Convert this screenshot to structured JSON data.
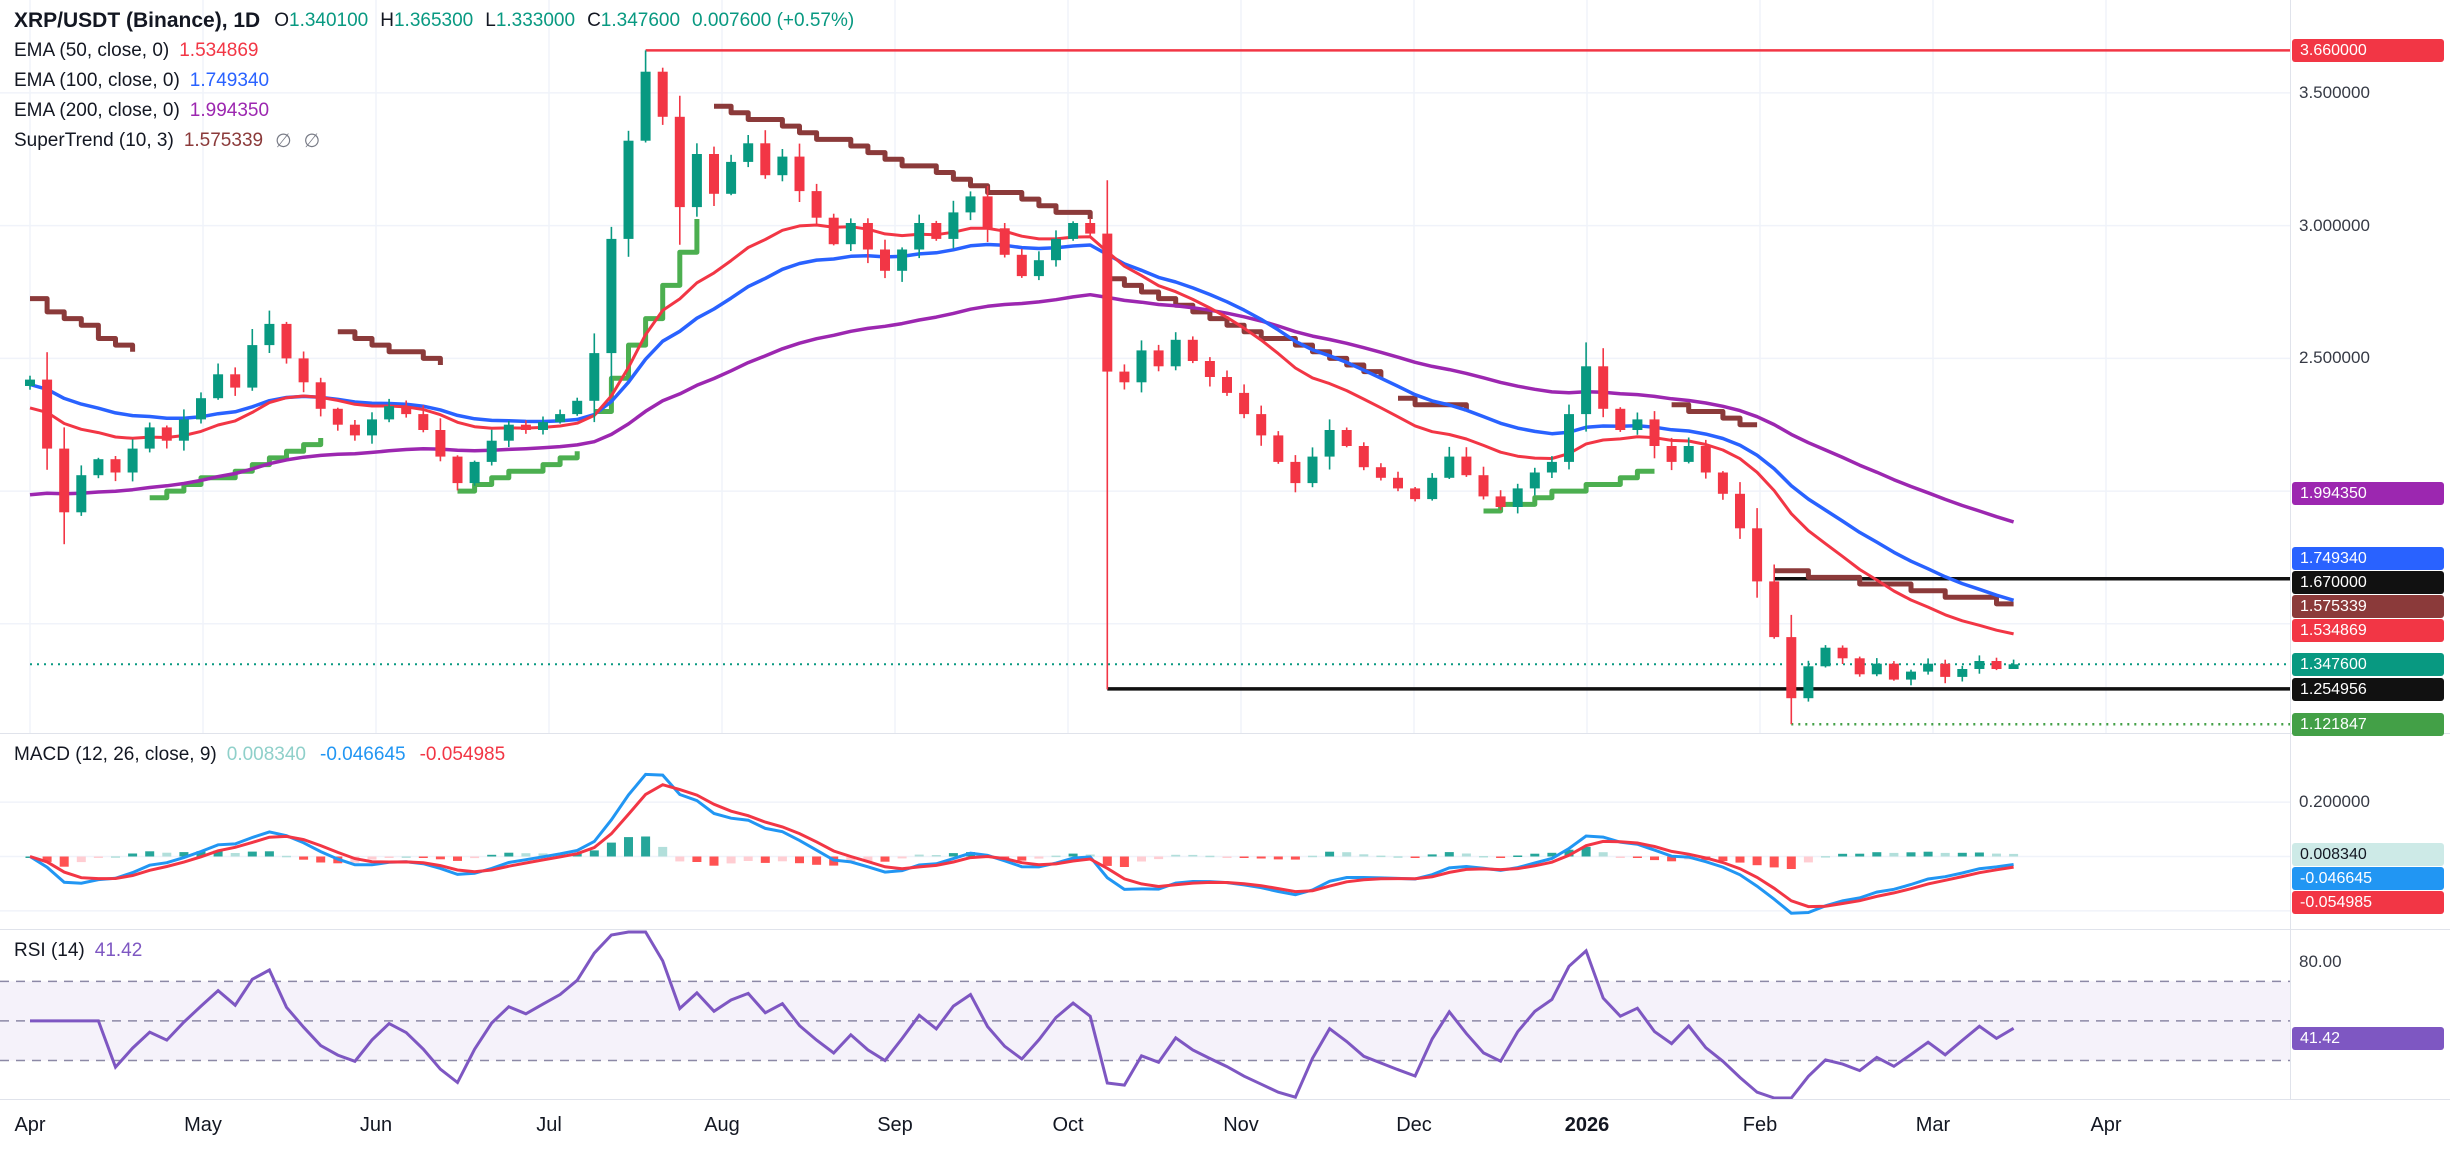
{
  "legend": {
    "symbol": "XRP/USDT (Binance), 1D",
    "ohlc": [
      {
        "k": "O",
        "v": "1.340100"
      },
      {
        "k": "H",
        "v": "1.365300"
      },
      {
        "k": "L",
        "v": "1.333000"
      },
      {
        "k": "C",
        "v": "1.347600"
      }
    ],
    "change": "0.007600 (+0.57%)",
    "up_color": "#089981",
    "indicators": {
      "ema50": {
        "label": "EMA (50, close, 0)",
        "value": "1.534869",
        "color": "#f23645"
      },
      "ema100": {
        "label": "EMA (100, close, 0)",
        "value": "1.749340",
        "color": "#2962ff"
      },
      "ema200": {
        "label": "EMA (200, close, 0)",
        "value": "1.994350",
        "color": "#9c27b0"
      },
      "supertrend": {
        "label": "SuperTrend (10, 3)",
        "value": "1.575339",
        "color": "#8b3a3a",
        "icon1": "∅",
        "icon2": "∅"
      },
      "macd": {
        "label": "MACD (12, 26, close, 9)",
        "hist_value": "0.008340",
        "hist_color": "#8fd0ca",
        "macd_value": "-0.046645",
        "macd_color": "#2196f3",
        "signal_value": "-0.054985",
        "signal_color": "#f23645"
      },
      "rsi": {
        "label": "RSI (14)",
        "value": "41.42",
        "color": "#7e57c2"
      }
    }
  },
  "price_axis": {
    "labels": [
      {
        "text": "3.500000",
        "value": 3.5
      },
      {
        "text": "3.000000",
        "value": 3.0
      },
      {
        "text": "2.500000",
        "value": 2.5
      }
    ],
    "badges": [
      {
        "text": "3.660000",
        "value": 3.66,
        "bg": "#f23645",
        "fg": "#ffffff"
      },
      {
        "text": "1.994350",
        "value": 1.99435,
        "bg": "#9c27b0",
        "fg": "#ffffff"
      },
      {
        "text": "1.749340",
        "value": 1.74934,
        "bg": "#2962ff",
        "fg": "#ffffff"
      },
      {
        "text": "1.670000",
        "value": 1.67,
        "bg": "#111111",
        "fg": "#ffffff"
      },
      {
        "text": "1.575339",
        "value": 1.575339,
        "bg": "#8b3a3a",
        "fg": "#ffffff"
      },
      {
        "text": "1.534869",
        "value": 1.534869,
        "bg": "#f23645",
        "fg": "#ffffff"
      },
      {
        "text": "1.347600",
        "value": 1.3476,
        "bg": "#089981",
        "fg": "#ffffff"
      },
      {
        "text": "1.254956",
        "value": 1.254956,
        "bg": "#111111",
        "fg": "#ffffff"
      },
      {
        "text": "1.121847",
        "value": 1.121847,
        "bg": "#43a047",
        "fg": "#ffffff"
      }
    ]
  },
  "macd_axis": {
    "labels": [
      {
        "text": "0.200000",
        "value": 0.2
      }
    ],
    "badges": [
      {
        "text": "0.008340",
        "value": 0.00834,
        "bg": "#cdeae7",
        "fg": "#131722"
      },
      {
        "text": "-0.046645",
        "value": -0.046645,
        "bg": "#2196f3",
        "fg": "#ffffff"
      },
      {
        "text": "-0.054985",
        "value": -0.054985,
        "bg": "#f23645",
        "fg": "#ffffff"
      }
    ]
  },
  "rsi_axis": {
    "labels": [
      {
        "text": "80.00",
        "value": 80
      }
    ],
    "badges": [
      {
        "text": "41.42",
        "value": 41.42,
        "bg": "#7e57c2",
        "fg": "#ffffff"
      }
    ]
  },
  "time_axis": {
    "months": [
      {
        "label": "Apr"
      },
      {
        "label": "May"
      },
      {
        "label": "Jun"
      },
      {
        "label": "Jul"
      },
      {
        "label": "Aug"
      },
      {
        "label": "Sep"
      },
      {
        "label": "Oct"
      },
      {
        "label": "Nov"
      },
      {
        "label": "Dec"
      },
      {
        "label": "2026",
        "bold": true
      },
      {
        "label": "Feb"
      },
      {
        "label": "Mar"
      },
      {
        "label": "Apr"
      }
    ]
  },
  "chart_data": [
    {
      "type": "candlestick",
      "title": "XRP/USDT (Binance), 1D",
      "timeframe": "1D",
      "last_ohlc": {
        "open": 1.3401,
        "high": 1.3653,
        "low": 1.333,
        "close": 1.3476,
        "change": 0.0076,
        "change_pct": "+0.57%"
      },
      "ylim": [
        1.085,
        3.85
      ],
      "grid": [
        3.5,
        3.0,
        2.5,
        2.0,
        1.5
      ],
      "x_months": [
        "Apr",
        "May",
        "Jun",
        "Jul",
        "Aug",
        "Sep",
        "Oct",
        "Nov",
        "Dec",
        "2026",
        "Feb",
        "Mar",
        "Apr"
      ],
      "bar_interval_days": 3,
      "up_color": "#089981",
      "down_color": "#f23645",
      "closes": [
        2.42,
        2.16,
        1.92,
        2.06,
        2.12,
        2.07,
        2.16,
        2.24,
        2.19,
        2.27,
        2.35,
        2.44,
        2.39,
        2.55,
        2.63,
        2.5,
        2.41,
        2.31,
        2.25,
        2.21,
        2.27,
        2.32,
        2.29,
        2.23,
        2.13,
        2.03,
        2.11,
        2.19,
        2.25,
        2.23,
        2.26,
        2.29,
        2.34,
        2.52,
        2.95,
        3.32,
        3.58,
        3.41,
        3.07,
        3.27,
        3.12,
        3.24,
        3.31,
        3.19,
        3.26,
        3.13,
        3.03,
        2.93,
        3.01,
        2.91,
        2.83,
        2.91,
        3.01,
        2.95,
        3.05,
        3.11,
        2.99,
        2.89,
        2.81,
        2.87,
        2.95,
        3.01,
        2.97,
        2.45,
        2.41,
        2.53,
        2.47,
        2.57,
        2.49,
        2.43,
        2.37,
        2.29,
        2.21,
        2.11,
        2.03,
        2.13,
        2.23,
        2.17,
        2.09,
        2.05,
        2.01,
        1.97,
        2.05,
        2.13,
        2.06,
        1.98,
        1.94,
        2.01,
        2.07,
        2.11,
        2.29,
        2.47,
        2.31,
        2.23,
        2.27,
        2.17,
        2.11,
        2.17,
        2.07,
        1.99,
        1.86,
        1.66,
        1.45,
        1.22,
        1.34,
        1.41,
        1.37,
        1.31,
        1.35,
        1.29,
        1.32,
        1.35,
        1.3,
        1.33,
        1.36,
        1.33,
        1.3476
      ],
      "wick_overrides": {
        "2": {
          "low": 1.8
        },
        "14": {
          "high": 2.68
        },
        "36": {
          "high": 3.66
        },
        "63": {
          "low": 1.253
        },
        "91": {
          "high": 2.56
        },
        "103": {
          "low": 1.1218
        },
        "116": {
          "high": 1.3653,
          "low": 1.333
        }
      },
      "overlays": {
        "ema50": {
          "period": 50,
          "period_bars": 17,
          "seed": 2.3,
          "color": "#f23645",
          "last": 1.534869
        },
        "ema100": {
          "period": 100,
          "period_bars": 26,
          "seed": 2.4,
          "color": "#2962ff",
          "last": 1.74934
        },
        "ema200": {
          "period": 200,
          "period_bars": 55,
          "seed": 1.97,
          "color": "#9c27b0",
          "last": 1.99435
        },
        "supertrend": {
          "period": 10,
          "multiplier": 3,
          "last": 1.575339,
          "up_color": "#4caf50",
          "down_color": "#8b3a3a",
          "segments": [
            {
              "i0": 0,
              "i1": 6,
              "p0": 2.72,
              "p1": 2.52,
              "trend": "down"
            },
            {
              "i0": 7,
              "i1": 17,
              "p0": 1.97,
              "p1": 2.2,
              "trend": "up"
            },
            {
              "i0": 18,
              "i1": 24,
              "p0": 2.6,
              "p1": 2.47,
              "trend": "down"
            },
            {
              "i0": 25,
              "i1": 32,
              "p0": 2.01,
              "p1": 2.14,
              "trend": "up"
            },
            {
              "i0": 33,
              "i1": 39,
              "p0": 2.3,
              "p1": 3.02,
              "trend": "up"
            },
            {
              "i0": 40,
              "i1": 62,
              "p0": 3.45,
              "p1": 3.02,
              "trend": "down"
            },
            {
              "i0": 63,
              "i1": 79,
              "p0": 2.8,
              "p1": 2.42,
              "trend": "down"
            },
            {
              "i0": 80,
              "i1": 84,
              "p0": 2.35,
              "p1": 2.3,
              "trend": "down"
            },
            {
              "i0": 85,
              "i1": 95,
              "p0": 1.93,
              "p1": 2.08,
              "trend": "up"
            },
            {
              "i0": 96,
              "i1": 101,
              "p0": 2.33,
              "p1": 2.24,
              "trend": "down"
            },
            {
              "i0": 102,
              "i1": 116,
              "p0": 1.7,
              "p1": 1.575,
              "trend": "down"
            }
          ]
        }
      },
      "hlines": [
        {
          "price": 3.66,
          "color": "#f23645",
          "style": "solid",
          "width": 2.5,
          "from_bar": 36
        },
        {
          "price": 1.67,
          "color": "#111111",
          "style": "solid",
          "width": 3.5,
          "from_bar": 102
        },
        {
          "price": 1.254956,
          "color": "#111111",
          "style": "solid",
          "width": 3.5,
          "from_bar": 63
        },
        {
          "price": 1.3476,
          "color": "#089981",
          "style": "dotted",
          "width": 2,
          "from_bar": 0
        },
        {
          "price": 1.121847,
          "color": "#43a047",
          "style": "dotted",
          "width": 2.5,
          "from_bar": 103
        }
      ]
    },
    {
      "type": "macd",
      "label": "MACD (12, 26, close, 9)",
      "fast": 12,
      "slow": 26,
      "source": "close",
      "signal": 9,
      "fast_bars": 5,
      "slow_bars": 10,
      "signal_bars": 3,
      "last": {
        "histogram": 0.00834,
        "macd": -0.046645,
        "signal": -0.054985
      },
      "ylim": [
        -0.27,
        0.45
      ],
      "grid": [
        0.2,
        0,
        -0.2
      ],
      "colors": {
        "macd_line": "#2196f3",
        "signal_line": "#f23645",
        "hist_up_grow": "#26a69a",
        "hist_up_fall": "#b2dfdb",
        "hist_down_grow": "#ffcdd2",
        "hist_down_fall": "#ff5252"
      }
    },
    {
      "type": "rsi",
      "label": "RSI (14)",
      "period": 14,
      "period_bars": 5,
      "last": 41.42,
      "ylim": [
        10,
        96
      ],
      "bands": {
        "upper": 70,
        "middle": 50,
        "lower": 30
      },
      "axis_label": 80,
      "color": "#7e57c2",
      "band_fill": "rgba(126,87,194,0.08)",
      "band_line_color": "#8c89a6"
    }
  ]
}
